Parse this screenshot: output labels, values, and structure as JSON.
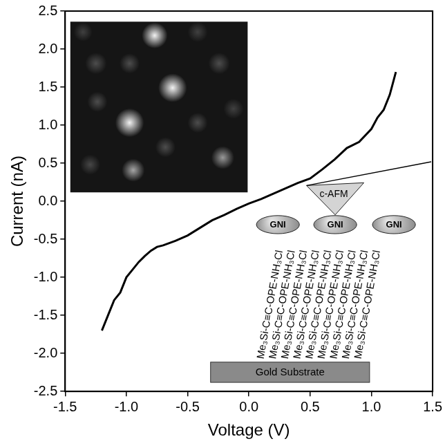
{
  "chart_data": {
    "type": "line",
    "xlabel": "Voltage (V)",
    "ylabel": "Current (nA)",
    "x": [
      -1.2,
      -1.15,
      -1.1,
      -1.05,
      -1.0,
      -0.95,
      -0.9,
      -0.85,
      -0.8,
      -0.75,
      -0.7,
      -0.6,
      -0.5,
      -0.4,
      -0.3,
      -0.2,
      -0.1,
      0.0,
      0.1,
      0.2,
      0.3,
      0.4,
      0.5,
      0.6,
      0.7,
      0.8,
      0.9,
      1.0,
      1.05,
      1.1,
      1.15,
      1.2
    ],
    "values": [
      -1.7,
      -1.5,
      -1.3,
      -1.2,
      -1.0,
      -0.9,
      -0.8,
      -0.72,
      -0.65,
      -0.6,
      -0.58,
      -0.52,
      -0.45,
      -0.35,
      -0.25,
      -0.18,
      -0.1,
      -0.03,
      0.03,
      0.1,
      0.17,
      0.24,
      0.3,
      0.42,
      0.55,
      0.7,
      0.78,
      0.95,
      1.1,
      1.2,
      1.4,
      1.7
    ],
    "color": "#000000",
    "marker": "none",
    "line_style": "solid",
    "grid": false,
    "xlim": [
      -1.5,
      1.5
    ],
    "xticks": [
      -1.5,
      {
        "value": -1,
        "label": "-1.0"
      },
      -0.5,
      {
        "value": 0,
        "label": "0.0"
      },
      0.5,
      {
        "value": 1,
        "label": "1.0"
      },
      1.5
    ],
    "ylim": [
      -2.5,
      2.5
    ],
    "yticks": [
      -2.5,
      {
        "value": -2,
        "label": "-2.0"
      },
      -1.5,
      {
        "value": -1,
        "label": "-1.0"
      },
      -0.5,
      {
        "value": 0,
        "label": "0.0"
      },
      0.5,
      {
        "value": 1,
        "label": "1.0"
      },
      1.5,
      {
        "value": 2,
        "label": "2.0"
      },
      2.5
    ]
  },
  "schematic": {
    "tip_label": "c-AFM",
    "particles": [
      "GNI",
      "GNI",
      "GNI"
    ],
    "molecules": [
      "Me₃Si-C≡C-OPE-NH₃Cl",
      "Me₃Si-C≡C-OPE-NH₃Cl",
      "Me₃Si-C≡C-OPE-NH₃Cl",
      "Me₃Si-C≡C-OPE-NH₃Cl",
      "Me₃Si-C≡C-OPE-NH₃Cl",
      "Me₃Si-C≡C-OPE-NH₃Cl",
      "Me₃Si-C≡C-OPE-NH₃Cl",
      "Me₃Si-C≡C-OPE-NH₃Cl",
      "Me₃Si-C≡C-OPE-NH₃Cl"
    ],
    "substrate": "Gold Substrate"
  }
}
